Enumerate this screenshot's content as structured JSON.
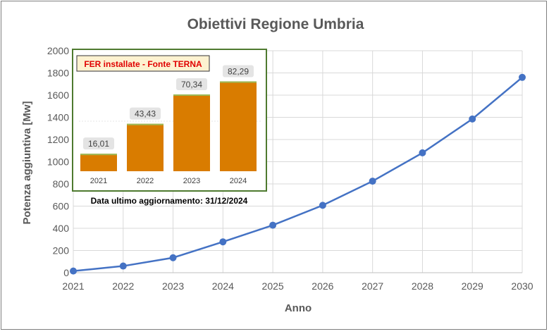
{
  "chart_data": [
    {
      "type": "line",
      "title": "Obiettivi Regione Umbria",
      "xlabel": "Anno",
      "ylabel": "Potenza aggiuntiva [Mw]",
      "x": [
        2021,
        2022,
        2023,
        2024,
        2025,
        2026,
        2027,
        2028,
        2029,
        2030
      ],
      "x_tick_labels": [
        "2021",
        "2022",
        "2023",
        "2024",
        "2025",
        "2026",
        "2027",
        "2028",
        "2029",
        "2030"
      ],
      "series": [
        {
          "values": [
            15,
            60,
            135,
            278,
            428,
            607,
            825,
            1080,
            1385,
            1760
          ],
          "color": "#4472c4"
        }
      ],
      "ylim": [
        0,
        2000
      ],
      "y_ticks": [
        0,
        200,
        400,
        600,
        800,
        1000,
        1200,
        1400,
        1600,
        1800,
        2000
      ],
      "y_tick_labels": [
        "0",
        "200",
        "400",
        "600",
        "800",
        "1000",
        "1200",
        "1400",
        "1600",
        "1800",
        "2000"
      ],
      "grid": true
    },
    {
      "type": "bar",
      "title": "FER installate - Fonte TERNA",
      "categories": [
        "2021",
        "2022",
        "2023",
        "2024"
      ],
      "values": [
        16.01,
        43.43,
        70.34,
        82.29
      ],
      "value_labels": [
        "16,01",
        "43,43",
        "70,34",
        "82,29"
      ],
      "bar_color": "#d97c00",
      "footnote": "Data ultimo aggiornamento: 31/12/2024",
      "title_color": "#e00000"
    }
  ]
}
